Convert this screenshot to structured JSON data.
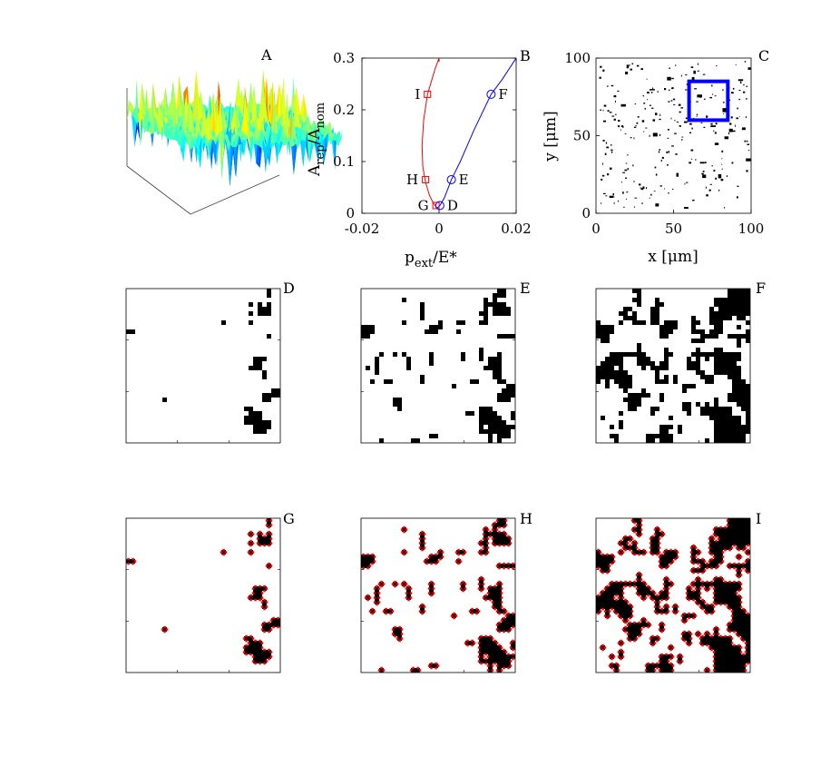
{
  "panel_labels": [
    "A",
    "B",
    "C",
    "D",
    "E",
    "F",
    "G",
    "H",
    "I"
  ],
  "chart_data": [
    {
      "panel": "A",
      "type": "surface",
      "description_colormap": "jet"
    },
    {
      "panel": "B",
      "type": "line",
      "xlabel_main": "p",
      "xlabel_sub": "ext",
      "xlabel_tail": "/E*",
      "ylabel_main": "A",
      "ylabel_sub1": "rep",
      "ylabel_mid": "/A",
      "ylabel_sub2": "nom",
      "xlim": [
        -0.02,
        0.02
      ],
      "ylim": [
        0,
        0.3
      ],
      "xticks": [
        "-0.02",
        "0",
        "0.02"
      ],
      "yticks": [
        "0",
        "0.1",
        "0.2",
        "0.3"
      ],
      "xtick_values": [
        -0.02,
        0,
        0.02
      ],
      "ytick_values": [
        0,
        0.1,
        0.2,
        0.3
      ],
      "series": [
        {
          "color": "#ff0000",
          "marker": "square",
          "x": [
            -0.0005,
            -0.0015,
            -0.0025,
            -0.0035,
            -0.0042,
            -0.0044,
            -0.004,
            -0.003,
            -0.0018,
            -0.001,
            0.0
          ],
          "y": [
            0.01,
            0.02,
            0.035,
            0.06,
            0.09,
            0.13,
            0.18,
            0.23,
            0.26,
            0.28,
            0.3
          ]
        },
        {
          "color": "#0000ff",
          "marker": "circle",
          "x": [
            -0.0005,
            0.0003,
            0.0014,
            0.0032,
            0.0055,
            0.009,
            0.0135,
            0.0165,
            0.02
          ],
          "y": [
            0.01,
            0.016,
            0.03,
            0.065,
            0.1,
            0.16,
            0.23,
            0.26,
            0.3
          ]
        }
      ],
      "points": [
        {
          "label": "I",
          "x": -0.003,
          "y": 0.23,
          "series": 0
        },
        {
          "label": "H",
          "x": -0.0035,
          "y": 0.065,
          "series": 0
        },
        {
          "label": "G",
          "x": -0.0008,
          "y": 0.015,
          "series": 0
        },
        {
          "label": "F",
          "x": 0.0135,
          "y": 0.23,
          "series": 1
        },
        {
          "label": "E",
          "x": 0.0032,
          "y": 0.065,
          "series": 1
        },
        {
          "label": "D",
          "x": 0.0002,
          "y": 0.015,
          "series": 1
        }
      ]
    },
    {
      "panel": "C",
      "type": "heatmap",
      "xlabel": "x [μm]",
      "ylabel": "y [μm]",
      "xlim": [
        0,
        100
      ],
      "ylim": [
        0,
        100
      ],
      "xticks": [
        "0",
        "50",
        "100"
      ],
      "yticks": [
        "0",
        "50",
        "100"
      ],
      "tick_values": [
        0,
        50,
        100
      ],
      "highlight_box": {
        "x": [
          60,
          85
        ],
        "y": [
          60,
          85
        ],
        "color": "#0000ff"
      }
    },
    {
      "panel": "D",
      "type": "heatmap",
      "fill": 0.05
    },
    {
      "panel": "E",
      "type": "heatmap",
      "fill": 0.14
    },
    {
      "panel": "F",
      "type": "heatmap",
      "fill": 0.36
    },
    {
      "panel": "G",
      "type": "heatmap",
      "fill": 0.05,
      "edge_color": "#ff0000"
    },
    {
      "panel": "H",
      "type": "heatmap",
      "fill": 0.14,
      "edge_color": "#ff0000"
    },
    {
      "panel": "I",
      "type": "heatmap",
      "fill": 0.36,
      "edge_color": "#ff0000"
    }
  ]
}
